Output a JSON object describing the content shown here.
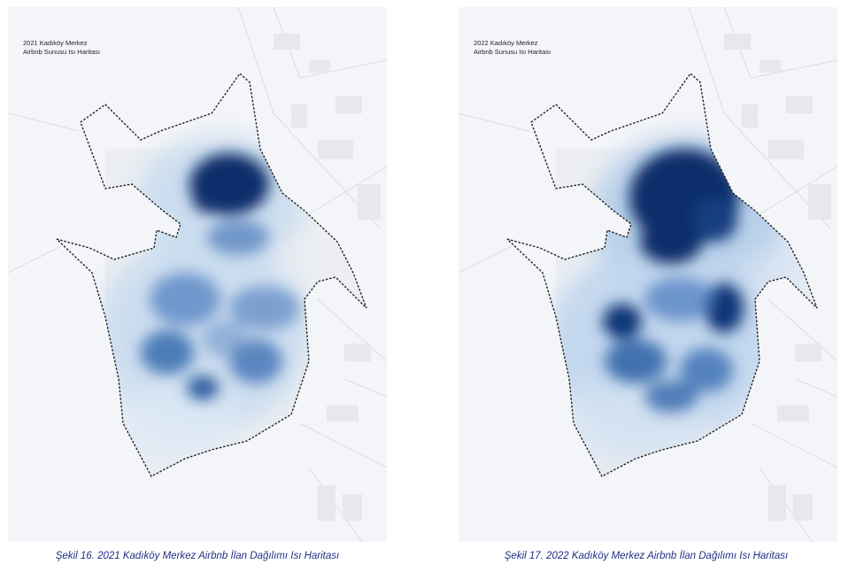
{
  "maps": [
    {
      "title_line1": "2021 Kadıköy Merkez",
      "title_line2": "Airbnb Sunusu Isı Haritası",
      "caption": "Şekil 16. 2021 Kadıköy Merkez Airbnb İlan Dağılımı Isı Haritası"
    },
    {
      "title_line1": "2022 Kadıköy Merkez",
      "title_line2": "Airbnb Sunusu Isı Haritası",
      "caption": "Şekil 17. 2022 Kadıköy Merkez Airbnb İlan Dağılımı Isı Haritası"
    }
  ],
  "colors": {
    "background": "#f4f5f8",
    "heat_low": "#c9dcf0",
    "heat_high": "#0b2f6b",
    "caption": "#1f2f86",
    "boundary": "#222222"
  }
}
